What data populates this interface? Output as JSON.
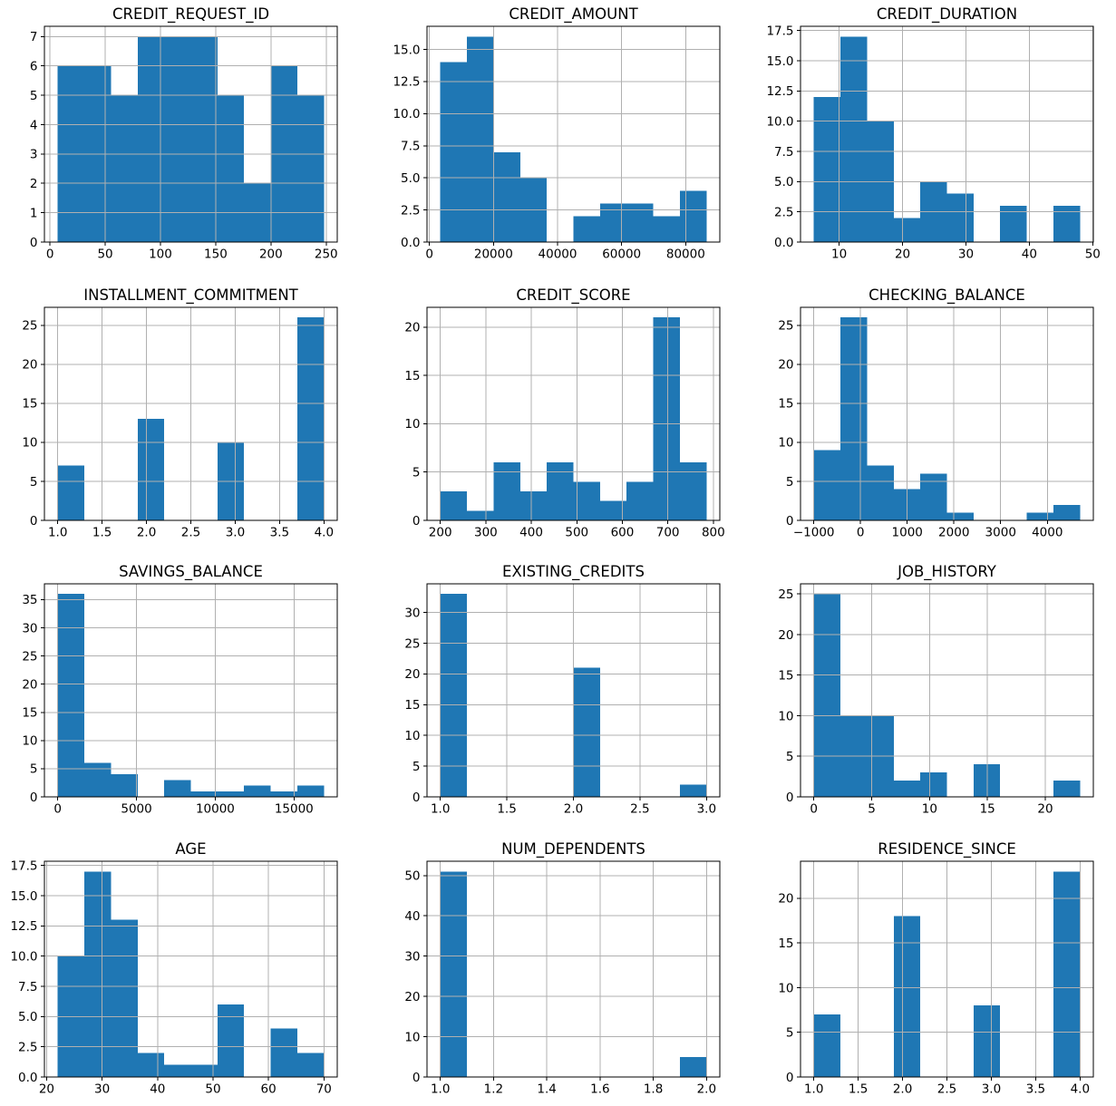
{
  "figure": {
    "background": "#ffffff",
    "bar_color": "#1f77b4",
    "grid_color": "#b0b0b0",
    "axis_color": "#000000",
    "text_color": "#000000",
    "grid": "on",
    "layout": "4 rows x 3 cols"
  },
  "chart_data": {
    "type": "bar",
    "subtype": "histogram-grid",
    "total_samples": 56,
    "bins_per_chart": 10,
    "charts": [
      {
        "title": "CREDIT_REQUEST_ID",
        "bin_range": [
          7,
          248
        ],
        "counts": [
          6,
          6,
          5,
          7,
          7,
          7,
          5,
          2,
          6,
          5
        ],
        "xlim": [
          -5.05,
          260.05
        ],
        "ylim": [
          0,
          7.35
        ],
        "xticks": [
          0,
          50,
          100,
          150,
          200,
          250
        ],
        "xtick_labels": [
          "0",
          "50",
          "100",
          "150",
          "200",
          "250"
        ],
        "yticks": [
          0,
          1,
          2,
          3,
          4,
          5,
          6,
          7
        ],
        "ytick_labels": [
          "0",
          "1",
          "2",
          "3",
          "4",
          "5",
          "6",
          "7"
        ]
      },
      {
        "title": "CREDIT_AMOUNT",
        "bin_range": [
          3400,
          86500
        ],
        "counts": [
          14,
          16,
          7,
          5,
          0,
          2,
          3,
          3,
          2,
          4
        ],
        "xlim": [
          -755,
          90655
        ],
        "ylim": [
          0,
          16.8
        ],
        "xticks": [
          0,
          20000,
          40000,
          60000,
          80000
        ],
        "xtick_labels": [
          "0",
          "20000",
          "40000",
          "60000",
          "80000"
        ],
        "yticks": [
          0,
          2.5,
          5,
          7.5,
          10,
          12.5,
          15
        ],
        "ytick_labels": [
          "0.0",
          "2.5",
          "5.0",
          "7.5",
          "10.0",
          "12.5",
          "15.0"
        ]
      },
      {
        "title": "CREDIT_DURATION",
        "bin_range": [
          6,
          48
        ],
        "counts": [
          12,
          17,
          10,
          2,
          5,
          4,
          0,
          3,
          0,
          3
        ],
        "xlim": [
          3.9,
          50.1
        ],
        "ylim": [
          0,
          17.85
        ],
        "xticks": [
          10,
          20,
          30,
          40,
          50
        ],
        "xtick_labels": [
          "10",
          "20",
          "30",
          "40",
          "50"
        ],
        "yticks": [
          0,
          2.5,
          5,
          7.5,
          10,
          12.5,
          15,
          17.5
        ],
        "ytick_labels": [
          "0.0",
          "2.5",
          "5.0",
          "7.5",
          "10.0",
          "12.5",
          "15.0",
          "17.5"
        ]
      },
      {
        "title": "INSTALLMENT_COMMITMENT",
        "bin_range": [
          1,
          4
        ],
        "counts": [
          7,
          0,
          0,
          13,
          0,
          0,
          10,
          0,
          0,
          26
        ],
        "xlim": [
          0.85,
          4.15
        ],
        "ylim": [
          0,
          27.3
        ],
        "xticks": [
          1,
          1.5,
          2,
          2.5,
          3,
          3.5,
          4
        ],
        "xtick_labels": [
          "1.0",
          "1.5",
          "2.0",
          "2.5",
          "3.0",
          "3.5",
          "4.0"
        ],
        "yticks": [
          0,
          5,
          10,
          15,
          20,
          25
        ],
        "ytick_labels": [
          "0",
          "5",
          "10",
          "15",
          "20",
          "25"
        ]
      },
      {
        "title": "CREDIT_SCORE",
        "bin_range": [
          200,
          785
        ],
        "counts": [
          3,
          1,
          6,
          3,
          6,
          4,
          2,
          4,
          21,
          6
        ],
        "xlim": [
          170.75,
          814.25
        ],
        "ylim": [
          0,
          22.05
        ],
        "xticks": [
          200,
          300,
          400,
          500,
          600,
          700,
          800
        ],
        "xtick_labels": [
          "200",
          "300",
          "400",
          "500",
          "600",
          "700",
          "800"
        ],
        "yticks": [
          0,
          5,
          10,
          15,
          20
        ],
        "ytick_labels": [
          "0",
          "5",
          "10",
          "15",
          "20"
        ]
      },
      {
        "title": "CHECKING_BALANCE",
        "bin_range": [
          -1000,
          4700
        ],
        "counts": [
          9,
          26,
          7,
          4,
          6,
          1,
          0,
          0,
          1,
          2
        ],
        "xlim": [
          -1285,
          4985
        ],
        "ylim": [
          0,
          27.3
        ],
        "xticks": [
          -1000,
          0,
          1000,
          2000,
          3000,
          4000
        ],
        "xtick_labels": [
          "−1000",
          "0",
          "1000",
          "2000",
          "3000",
          "4000"
        ],
        "yticks": [
          0,
          5,
          10,
          15,
          20,
          25
        ],
        "ytick_labels": [
          "0",
          "5",
          "10",
          "15",
          "20",
          "25"
        ]
      },
      {
        "title": "SAVINGS_BALANCE",
        "bin_range": [
          0,
          16900
        ],
        "counts": [
          36,
          6,
          4,
          0,
          3,
          1,
          1,
          2,
          1,
          2
        ],
        "xlim": [
          -845,
          17745
        ],
        "ylim": [
          0,
          37.8
        ],
        "xticks": [
          0,
          5000,
          10000,
          15000
        ],
        "xtick_labels": [
          "0",
          "5000",
          "10000",
          "15000"
        ],
        "yticks": [
          0,
          5,
          10,
          15,
          20,
          25,
          30,
          35
        ],
        "ytick_labels": [
          "0",
          "5",
          "10",
          "15",
          "20",
          "25",
          "30",
          "35"
        ]
      },
      {
        "title": "EXISTING_CREDITS",
        "bin_range": [
          1,
          3
        ],
        "counts": [
          33,
          0,
          0,
          0,
          0,
          21,
          0,
          0,
          0,
          2
        ],
        "xlim": [
          0.9,
          3.1
        ],
        "ylim": [
          0,
          34.65
        ],
        "xticks": [
          1,
          1.5,
          2,
          2.5,
          3
        ],
        "xtick_labels": [
          "1.0",
          "1.5",
          "2.0",
          "2.5",
          "3.0"
        ],
        "yticks": [
          0,
          5,
          10,
          15,
          20,
          25,
          30
        ],
        "ytick_labels": [
          "0",
          "5",
          "10",
          "15",
          "20",
          "25",
          "30"
        ]
      },
      {
        "title": "JOB_HISTORY",
        "bin_range": [
          0,
          23
        ],
        "counts": [
          25,
          10,
          10,
          2,
          3,
          0,
          4,
          0,
          0,
          2
        ],
        "xlim": [
          -1.15,
          24.15
        ],
        "ylim": [
          0,
          26.25
        ],
        "xticks": [
          0,
          5,
          10,
          15,
          20
        ],
        "xtick_labels": [
          "0",
          "5",
          "10",
          "15",
          "20"
        ],
        "yticks": [
          0,
          5,
          10,
          15,
          20,
          25
        ],
        "ytick_labels": [
          "0",
          "5",
          "10",
          "15",
          "20",
          "25"
        ]
      },
      {
        "title": "AGE",
        "bin_range": [
          22,
          70
        ],
        "counts": [
          10,
          17,
          13,
          2,
          1,
          1,
          6,
          0,
          4,
          2
        ],
        "xlim": [
          19.6,
          72.4
        ],
        "ylim": [
          0,
          17.85
        ],
        "xticks": [
          20,
          30,
          40,
          50,
          60,
          70
        ],
        "xtick_labels": [
          "20",
          "30",
          "40",
          "50",
          "60",
          "70"
        ],
        "yticks": [
          0,
          2.5,
          5,
          7.5,
          10,
          12.5,
          15,
          17.5
        ],
        "ytick_labels": [
          "0.0",
          "2.5",
          "5.0",
          "7.5",
          "10.0",
          "12.5",
          "15.0",
          "17.5"
        ]
      },
      {
        "title": "NUM_DEPENDENTS",
        "bin_range": [
          1,
          2
        ],
        "counts": [
          51,
          0,
          0,
          0,
          0,
          0,
          0,
          0,
          0,
          5
        ],
        "xlim": [
          0.95,
          2.05
        ],
        "ylim": [
          0,
          53.55
        ],
        "xticks": [
          1,
          1.2,
          1.4,
          1.6,
          1.8,
          2
        ],
        "xtick_labels": [
          "1.0",
          "1.2",
          "1.4",
          "1.6",
          "1.8",
          "2.0"
        ],
        "yticks": [
          0,
          10,
          20,
          30,
          40,
          50
        ],
        "ytick_labels": [
          "0",
          "10",
          "20",
          "30",
          "40",
          "50"
        ]
      },
      {
        "title": "RESIDENCE_SINCE",
        "bin_range": [
          1,
          4
        ],
        "counts": [
          7,
          0,
          0,
          18,
          0,
          0,
          8,
          0,
          0,
          23
        ],
        "xlim": [
          0.85,
          4.15
        ],
        "ylim": [
          0,
          24.15
        ],
        "xticks": [
          1,
          1.5,
          2,
          2.5,
          3,
          3.5,
          4
        ],
        "xtick_labels": [
          "1.0",
          "1.5",
          "2.0",
          "2.5",
          "3.0",
          "3.5",
          "4.0"
        ],
        "yticks": [
          0,
          5,
          10,
          15,
          20
        ],
        "ytick_labels": [
          "0",
          "5",
          "10",
          "15",
          "20"
        ]
      }
    ]
  }
}
